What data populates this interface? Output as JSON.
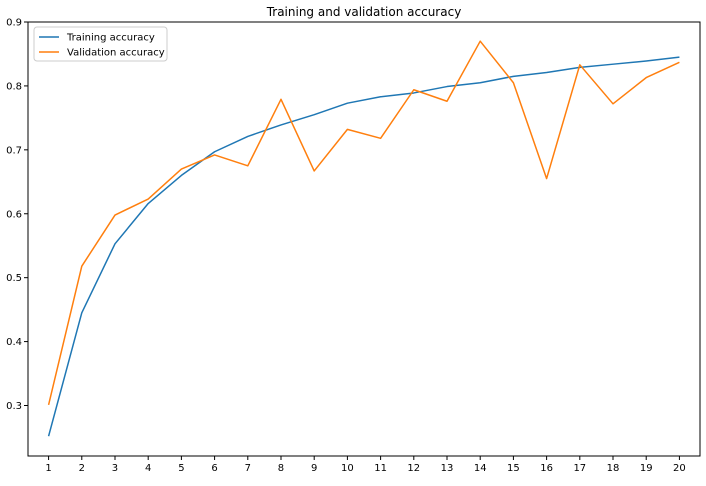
{
  "chart_data": {
    "type": "line",
    "title": "Training and validation accuracy",
    "xlabel": "",
    "ylabel": "",
    "x": [
      1,
      2,
      3,
      4,
      5,
      6,
      7,
      8,
      9,
      10,
      11,
      12,
      13,
      14,
      15,
      16,
      17,
      18,
      19,
      20
    ],
    "x_ticks": [
      "1",
      "2",
      "3",
      "4",
      "5",
      "6",
      "7",
      "8",
      "9",
      "10",
      "11",
      "12",
      "13",
      "14",
      "15",
      "16",
      "17",
      "18",
      "19",
      "20"
    ],
    "xlim": [
      0.38,
      20.62
    ],
    "ylim": [
      0.221,
      0.9
    ],
    "y_ticks": [
      0.3,
      0.4,
      0.5,
      0.6,
      0.7,
      0.8,
      0.9
    ],
    "y_tick_labels": [
      "0.3",
      "0.4",
      "0.5",
      "0.6",
      "0.7",
      "0.8",
      "0.9"
    ],
    "grid": false,
    "legend_position": "top-left",
    "series": [
      {
        "name": "Training accuracy",
        "color": "#1f77b4",
        "values": [
          0.252,
          0.445,
          0.553,
          0.616,
          0.66,
          0.697,
          0.721,
          0.739,
          0.755,
          0.773,
          0.783,
          0.789,
          0.799,
          0.805,
          0.815,
          0.821,
          0.829,
          0.834,
          0.839,
          0.845
        ]
      },
      {
        "name": "Validation accuracy",
        "color": "#ff7f0e",
        "values": [
          0.301,
          0.518,
          0.598,
          0.623,
          0.67,
          0.692,
          0.675,
          0.779,
          0.667,
          0.732,
          0.718,
          0.794,
          0.776,
          0.87,
          0.805,
          0.655,
          0.833,
          0.772,
          0.813,
          0.837
        ]
      }
    ]
  }
}
